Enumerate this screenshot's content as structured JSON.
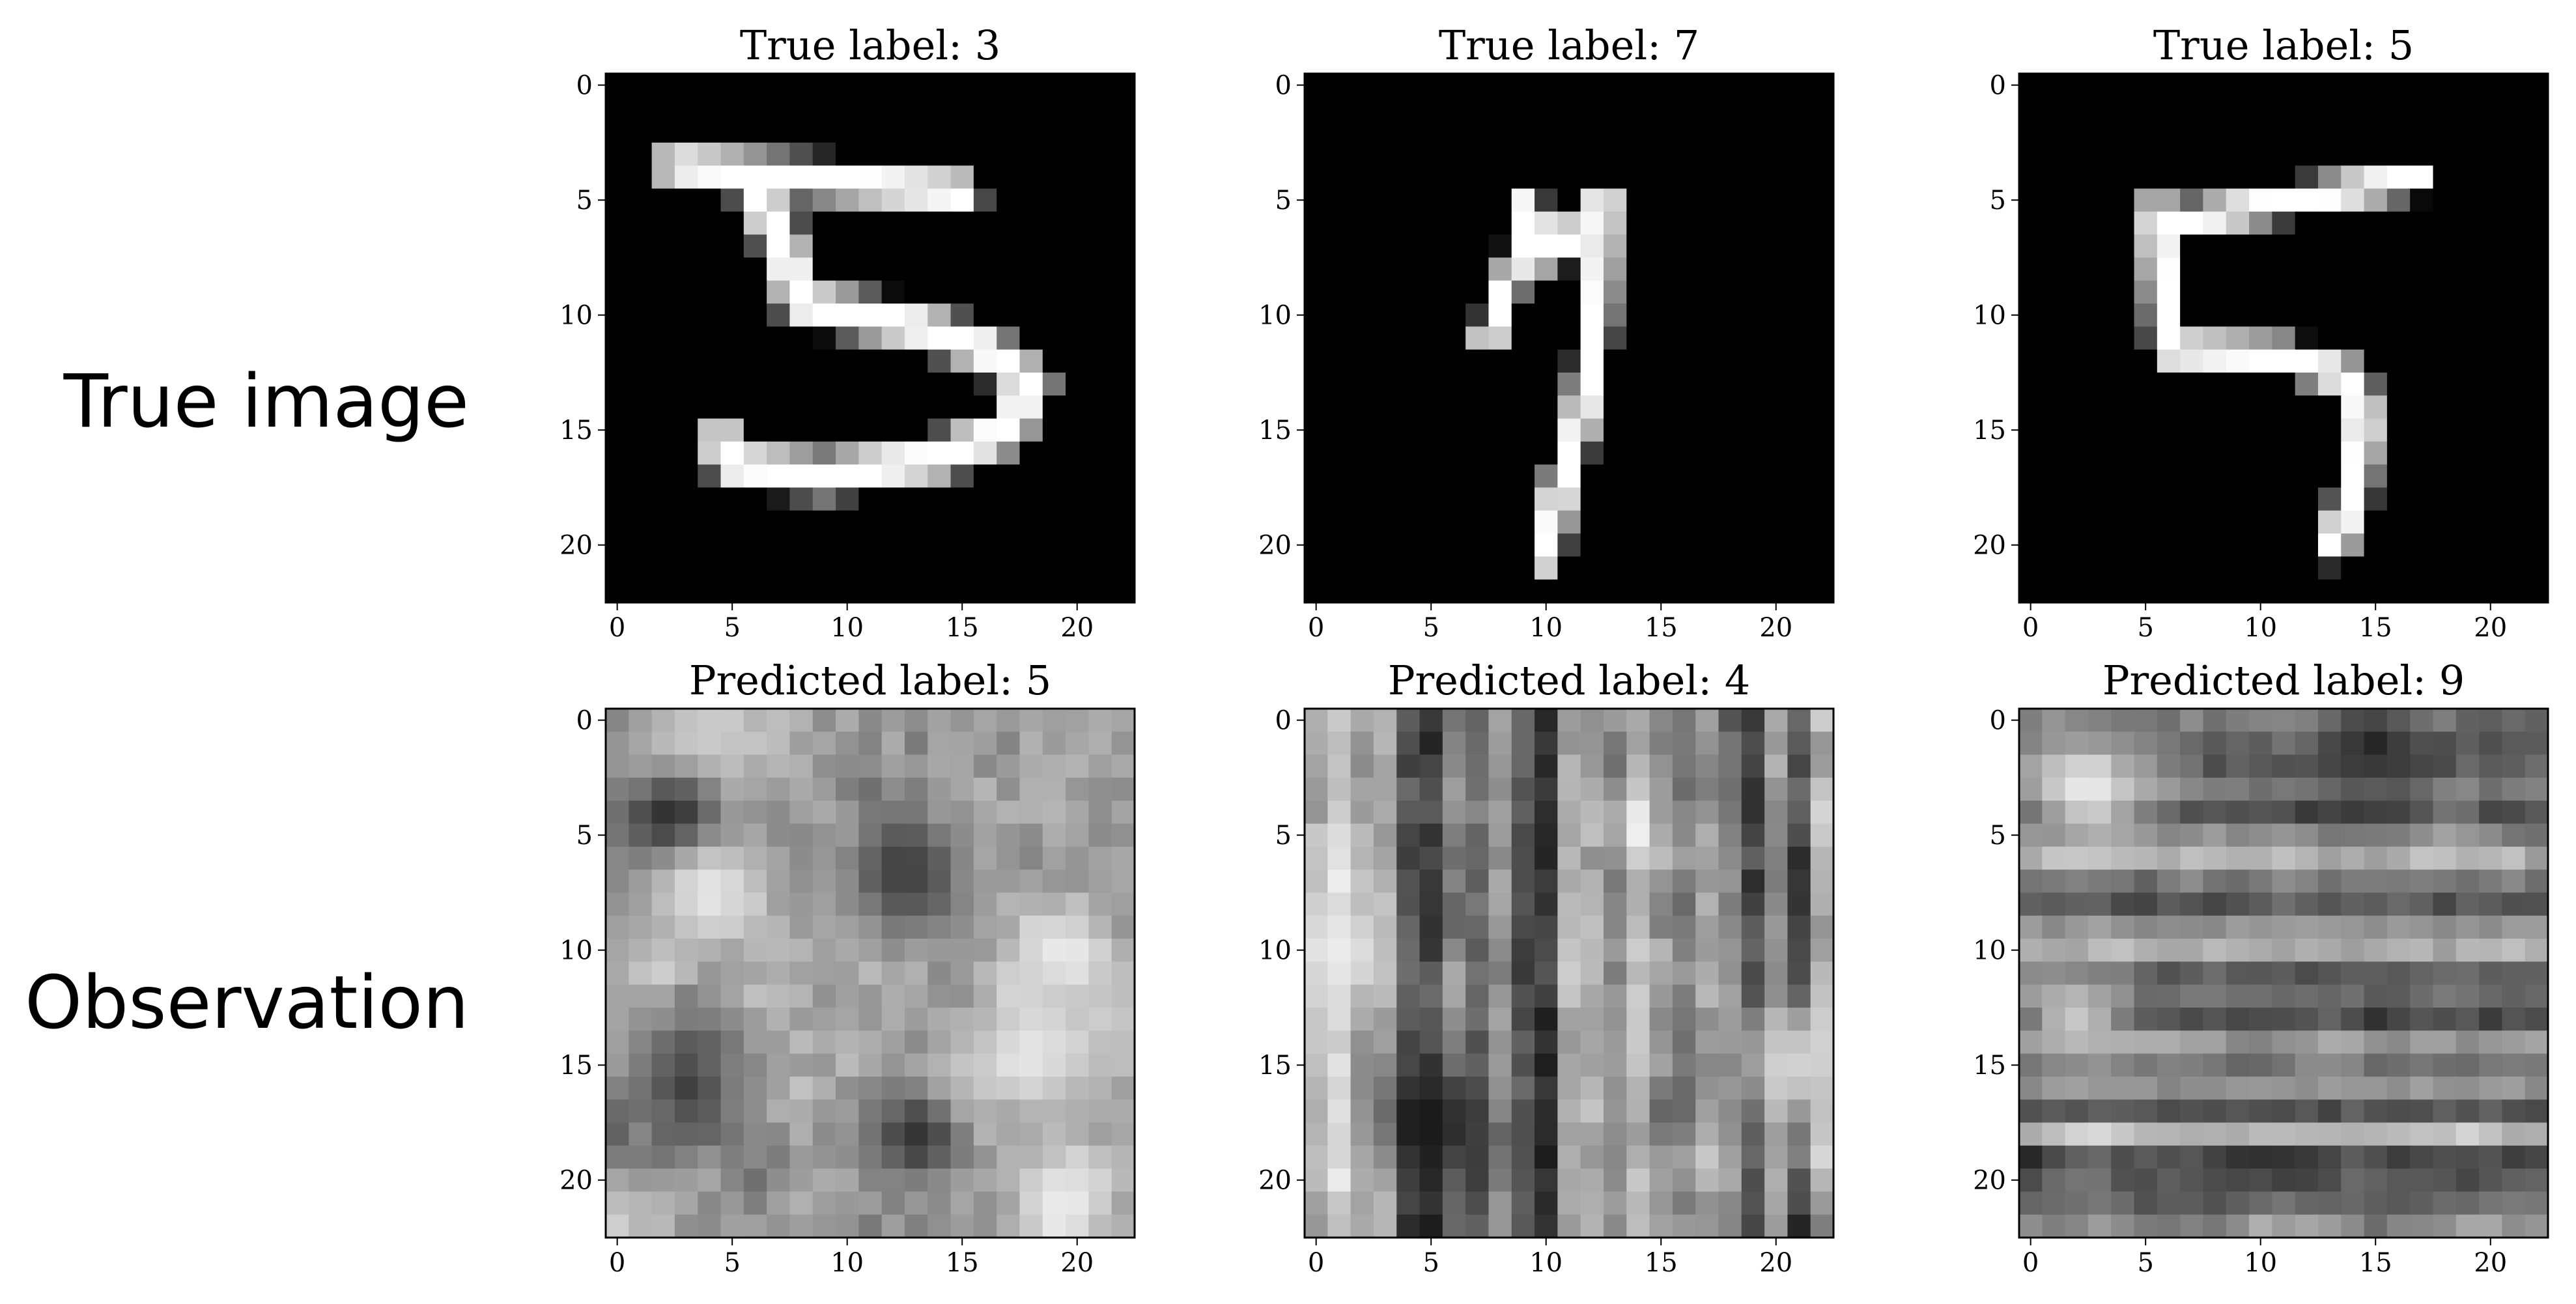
{
  "figure": {
    "row_labels": [
      "True image",
      "Observation"
    ]
  },
  "chart_data": [
    {
      "type": "heatmap",
      "row": "true",
      "title": "True label: 3",
      "colormap": "gray",
      "grid": false,
      "xlim": [
        -0.5,
        22.5
      ],
      "ylim": [
        22.5,
        -0.5
      ],
      "xticks": [
        0,
        5,
        10,
        15,
        20
      ],
      "yticks": [
        0,
        5,
        10,
        15,
        20
      ],
      "strokes": [
        {
          "w": 1.2,
          "pts": [
            [
              2.5,
              3.5
            ],
            [
              15,
              4.7
            ]
          ]
        },
        {
          "w": 1.3,
          "pts": [
            [
              6,
              4.5
            ],
            [
              7,
              6.5
            ],
            [
              8,
              9.5
            ]
          ]
        },
        {
          "w": 1.3,
          "pts": [
            [
              8,
              9.5
            ],
            [
              13,
              10.5
            ],
            [
              16,
              11.5
            ],
            [
              18,
              13
            ],
            [
              17,
              15
            ],
            [
              14,
              16.2
            ],
            [
              9,
              17
            ],
            [
              5,
              16.5
            ],
            [
              4.5,
              15.5
            ]
          ]
        }
      ]
    },
    {
      "type": "heatmap",
      "row": "true",
      "title": "True label: 7",
      "colormap": "gray",
      "grid": false,
      "xlim": [
        -0.5,
        22.5
      ],
      "ylim": [
        22.5,
        -0.5
      ],
      "xticks": [
        0,
        5,
        10,
        15,
        20
      ],
      "yticks": [
        0,
        5,
        10,
        15,
        20
      ],
      "strokes": [
        {
          "w": 0.9,
          "pts": [
            [
              7.5,
              11
            ],
            [
              8.8,
              7.5
            ],
            [
              9.2,
              5.2
            ]
          ]
        },
        {
          "w": 0.9,
          "pts": [
            [
              9.2,
              5.2
            ],
            [
              10.3,
              7.5
            ],
            [
              12.5,
              5
            ]
          ]
        },
        {
          "w": 1.0,
          "pts": [
            [
              12.5,
              5
            ],
            [
              12.2,
              10.5
            ],
            [
              11.5,
              14.5
            ],
            [
              10.5,
              18
            ],
            [
              10,
              20.5
            ]
          ]
        }
      ]
    },
    {
      "type": "heatmap",
      "row": "true",
      "title": "True label: 5",
      "colormap": "gray",
      "grid": false,
      "xlim": [
        -0.5,
        22.5
      ],
      "ylim": [
        22.5,
        -0.5
      ],
      "xticks": [
        0,
        5,
        10,
        15,
        20
      ],
      "yticks": [
        0,
        5,
        10,
        15,
        20
      ],
      "strokes": [
        {
          "w": 1.0,
          "pts": [
            [
              17,
              4
            ],
            [
              6,
              6
            ]
          ]
        },
        {
          "w": 1.1,
          "pts": [
            [
              5.5,
              5.5
            ],
            [
              6,
              11.5
            ]
          ]
        },
        {
          "w": 1.1,
          "pts": [
            [
              6,
              11.5
            ],
            [
              11,
              11.8
            ],
            [
              14,
              12.8
            ],
            [
              14.5,
              14.5
            ],
            [
              14,
              18
            ],
            [
              13.2,
              20
            ]
          ]
        }
      ]
    },
    {
      "type": "heatmap",
      "row": "observation",
      "title": "Predicted label: 5",
      "colormap": "gray",
      "grid": false,
      "xlim": [
        -0.5,
        22.5
      ],
      "ylim": [
        22.5,
        -0.5
      ],
      "xticks": [
        0,
        5,
        10,
        15,
        20
      ],
      "yticks": [
        0,
        5,
        10,
        15,
        20
      ],
      "seed": 11,
      "texture": "blobs",
      "base": 0.62,
      "amp": 0.18,
      "spots": [
        {
          "x": 3.5,
          "y": 1.5,
          "v": 0.85,
          "s": 2.2
        },
        {
          "x": 2.5,
          "y": 4.5,
          "v": 0.08,
          "s": 1.6
        },
        {
          "x": 4,
          "y": 7.5,
          "v": 0.9,
          "s": 1.8
        },
        {
          "x": 12.5,
          "y": 6.5,
          "v": 0.25,
          "s": 1.8
        },
        {
          "x": 19.5,
          "y": 10,
          "v": 0.92,
          "s": 1.4
        },
        {
          "x": 3,
          "y": 16,
          "v": 0.25,
          "s": 1.5
        },
        {
          "x": 13,
          "y": 18,
          "v": 0.2,
          "s": 1.5
        },
        {
          "x": 18,
          "y": 14.5,
          "v": 0.9,
          "s": 2.0
        },
        {
          "x": 19.5,
          "y": 21,
          "v": 0.92,
          "s": 1.6
        }
      ]
    },
    {
      "type": "heatmap",
      "row": "observation",
      "title": "Predicted label: 4",
      "colormap": "gray",
      "grid": false,
      "xlim": [
        -0.5,
        22.5
      ],
      "ylim": [
        22.5,
        -0.5
      ],
      "xticks": [
        0,
        5,
        10,
        15,
        20
      ],
      "yticks": [
        0,
        5,
        10,
        15,
        20
      ],
      "seed": 23,
      "texture": "stripes",
      "base": 0.5,
      "amp": 0.22,
      "spots": [
        {
          "x": 1,
          "y": 10,
          "v": 0.92,
          "s": 2.0
        },
        {
          "x": 5,
          "y": 17.5,
          "v": 0.1,
          "s": 1.5
        },
        {
          "x": 21,
          "y": 15,
          "v": 0.82,
          "s": 2.0
        }
      ]
    },
    {
      "type": "heatmap",
      "row": "observation",
      "title": "Predicted label: 9",
      "colormap": "gray",
      "grid": false,
      "xlim": [
        -0.5,
        22.5
      ],
      "ylim": [
        22.5,
        -0.5
      ],
      "xticks": [
        0,
        5,
        10,
        15,
        20
      ],
      "yticks": [
        0,
        5,
        10,
        15,
        20
      ],
      "seed": 37,
      "texture": "bands",
      "base": 0.5,
      "amp": 0.16,
      "spots": [
        {
          "x": 2.5,
          "y": 3,
          "v": 0.92,
          "s": 1.6
        },
        {
          "x": 15,
          "y": 1,
          "v": 0.15,
          "s": 1.2
        },
        {
          "x": 2,
          "y": 13,
          "v": 0.78,
          "s": 1.5
        }
      ]
    }
  ]
}
